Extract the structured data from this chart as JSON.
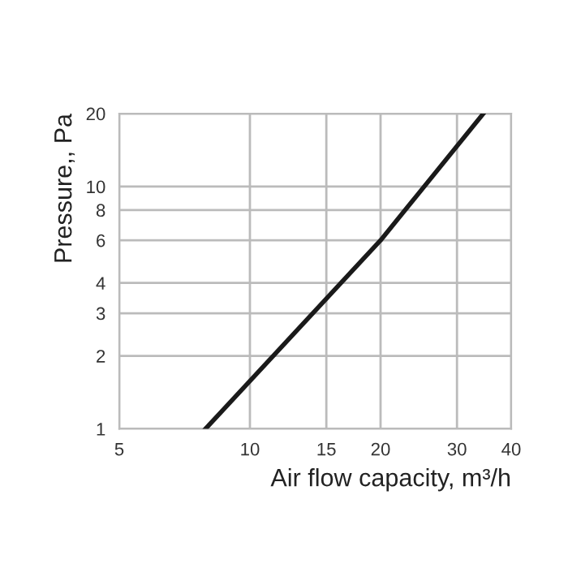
{
  "chart_data": {
    "type": "line",
    "xlabel": "Air flow capacity, m³/h",
    "ylabel": "Pressure,, Pa",
    "x": [
      7.9,
      20,
      34.5
    ],
    "series": [
      {
        "color": "#1a1a1a",
        "values": [
          1,
          6,
          20
        ]
      }
    ],
    "log": "xy",
    "xlim": [
      5,
      40
    ],
    "ylim": [
      1,
      20
    ],
    "xticks": [
      5,
      10,
      15,
      20,
      30,
      40
    ],
    "yticks": [
      1,
      2,
      3,
      4,
      6,
      8,
      10,
      20
    ],
    "grid": true,
    "marker": "none",
    "line_style": "solid",
    "legend": false
  }
}
